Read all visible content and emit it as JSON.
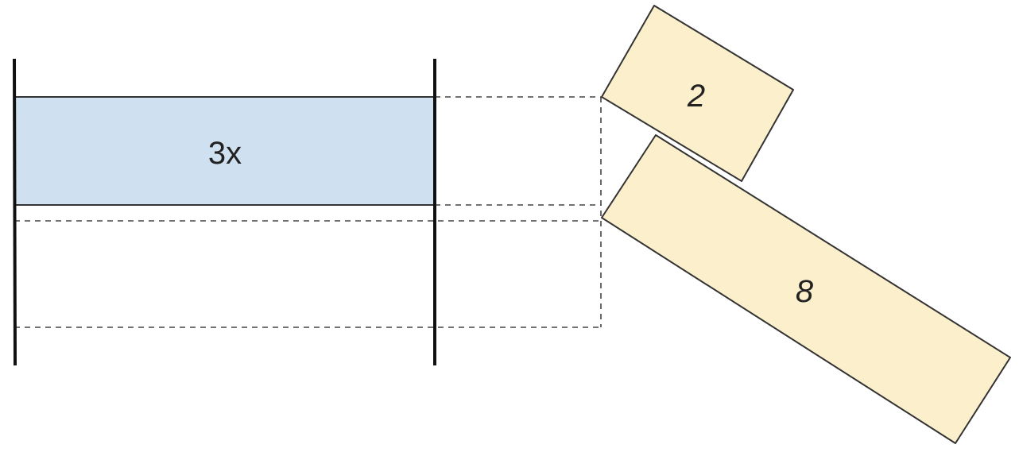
{
  "diagram": {
    "bar": {
      "label": "3x",
      "fill": "#cfe0f0"
    },
    "tiles": {
      "top_label": "2",
      "bottom_label": "8",
      "fill": "#fcf0cc"
    }
  }
}
